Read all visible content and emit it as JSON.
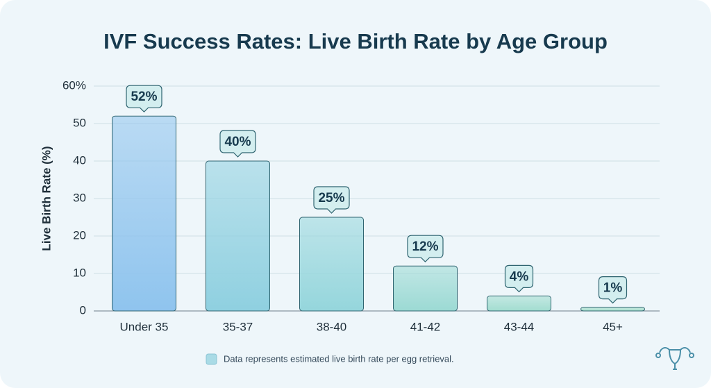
{
  "chart_data": {
    "type": "bar",
    "title": "IVF Success Rates: Live Birth Rate by Age Group",
    "y_label": "Live Birth Rate (%)",
    "categories": [
      "Under 35",
      "35-37",
      "38-40",
      "41-42",
      "43-44",
      "45+"
    ],
    "values": [
      52,
      40,
      25,
      12,
      4,
      1
    ],
    "value_labels": [
      "52%",
      "40%",
      "25%",
      "12%",
      "4%",
      "1%"
    ],
    "colors": [
      "#8fc4ee",
      "#8fd0e0",
      "#95d6dc",
      "#9cdad4",
      "#a2ddd0",
      "#a8e0cc"
    ],
    "ylim": [
      0,
      60
    ],
    "yticks": [
      0,
      10,
      20,
      30,
      40,
      50,
      {
        "value": 60,
        "label": "60%"
      }
    ],
    "grid": true,
    "footnote": "Data represents estimated live birth rate per egg retrieval."
  }
}
